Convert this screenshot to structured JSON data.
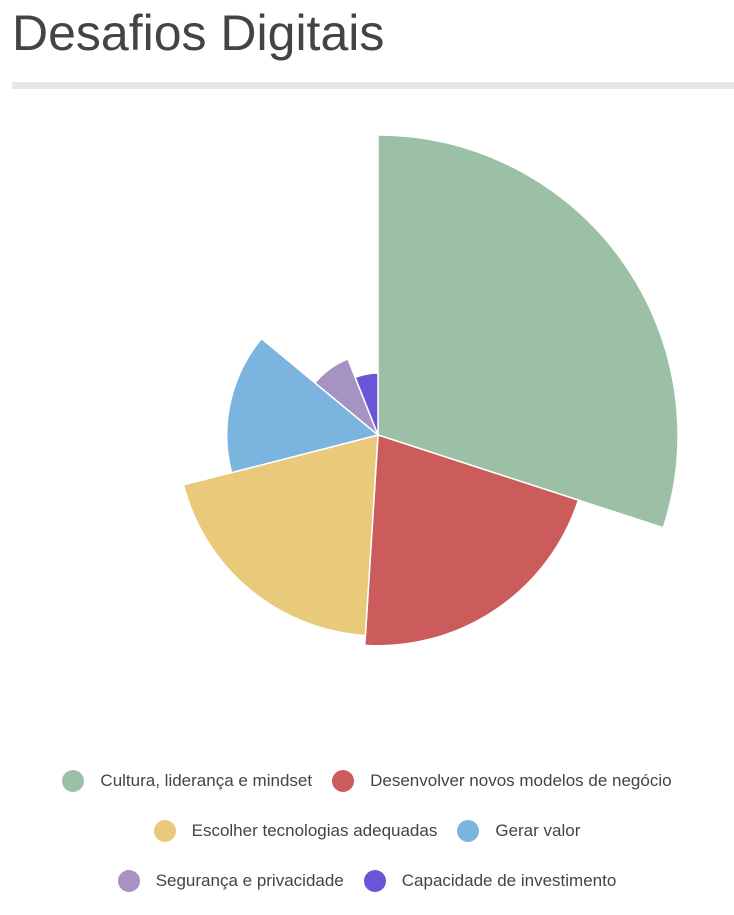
{
  "chart_data": {
    "type": "rose",
    "title": "Desafios Digitais",
    "series": [
      {
        "name": "Cultura, liderança e mindset",
        "color": "#9bc0a6",
        "value": 30
      },
      {
        "name": "Desenvolver novos modelos de negócio",
        "color": "#cb5c5b",
        "value": 21
      },
      {
        "name": "Escolher tecnologias adequadas",
        "color": "#e9c97a",
        "value": 20
      },
      {
        "name": "Gerar valor",
        "color": "#7ab4df",
        "value": 15
      },
      {
        "name": "Segurança e privacidade",
        "color": "#a693c4",
        "value": 8
      },
      {
        "name": "Capacidade de investimento",
        "color": "#6a55d6",
        "value": 6
      }
    ]
  }
}
